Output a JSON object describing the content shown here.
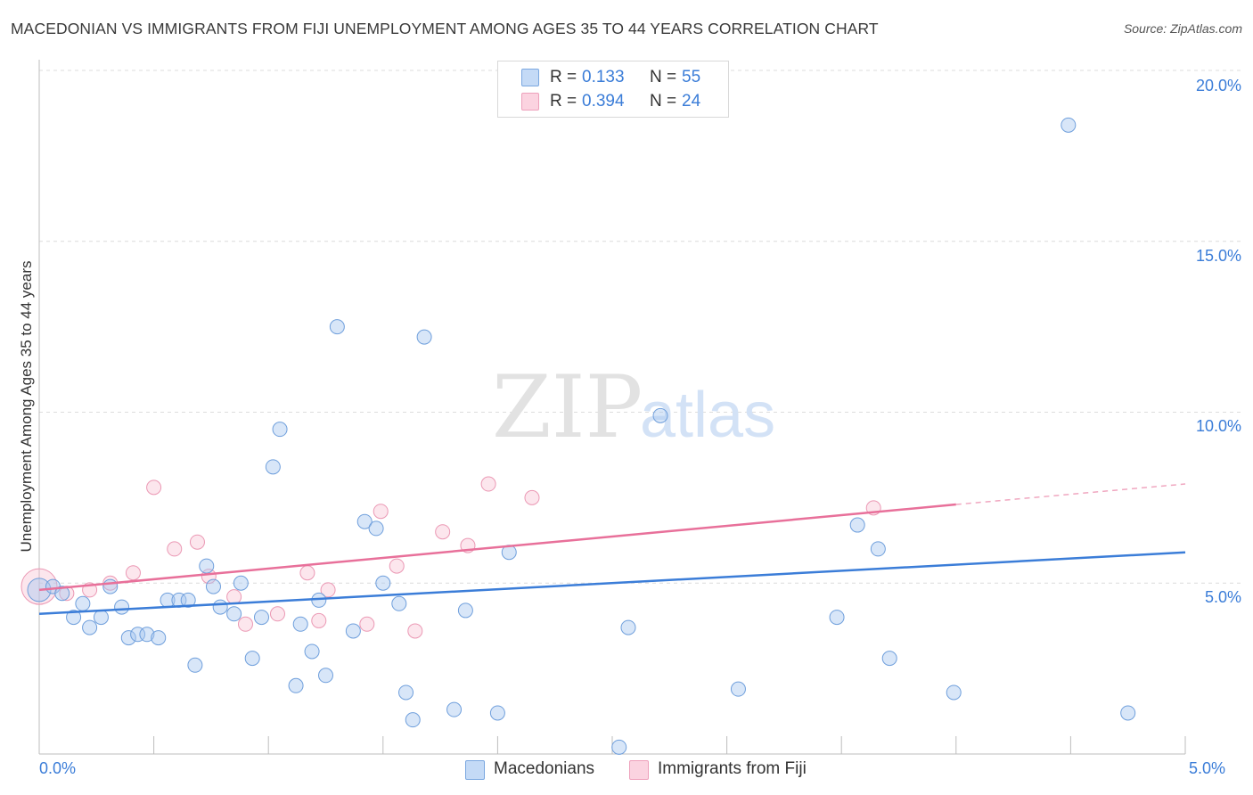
{
  "header": {
    "title": "MACEDONIAN VS IMMIGRANTS FROM FIJI UNEMPLOYMENT AMONG AGES 35 TO 44 YEARS CORRELATION CHART",
    "source": "Source: ZipAtlas.com"
  },
  "legend": {
    "series": [
      {
        "r_label": "R =",
        "r_value": "0.133",
        "n_label": "N =",
        "n_value": "55",
        "color": "#a8c8f0"
      },
      {
        "r_label": "R =",
        "r_value": "0.394",
        "n_label": "N =",
        "n_value": "24",
        "color": "#f7b8cc"
      }
    ]
  },
  "bottom_legend": {
    "items": [
      "Macedonians",
      "Immigrants from Fiji"
    ]
  },
  "watermark": {
    "zip": "ZIP",
    "atlas": "atlas"
  },
  "chart_data": {
    "type": "scatter",
    "title": "MACEDONIAN VS IMMIGRANTS FROM FIJI UNEMPLOYMENT AMONG AGES 35 TO 44 YEARS CORRELATION CHART",
    "xlabel": "",
    "ylabel": "Unemployment Among Ages 35 to 44 years",
    "xlim": [
      0,
      5
    ],
    "ylim": [
      0,
      20
    ],
    "x_ticks": [
      "0.0%",
      "5.0%"
    ],
    "y_ticks": [
      {
        "value": 5,
        "label": "5.0%"
      },
      {
        "value": 10,
        "label": "10.0%"
      },
      {
        "value": 15,
        "label": "15.0%"
      },
      {
        "value": 20,
        "label": "20.0%"
      }
    ],
    "grid": true,
    "colors": {
      "macedonians": "#3b7dd8",
      "fiji": "#e8709a",
      "macedonians_fill": "#a8c8f0",
      "fiji_fill": "#f7b8cc"
    },
    "series": [
      {
        "name": "Macedonians",
        "trend": {
          "x": [
            0.0,
            5.0
          ],
          "y": [
            4.1,
            5.9
          ]
        },
        "points": [
          [
            0.0,
            4.8
          ],
          [
            0.06,
            4.9
          ],
          [
            0.1,
            4.7
          ],
          [
            0.15,
            4.0
          ],
          [
            0.19,
            4.4
          ],
          [
            0.22,
            3.7
          ],
          [
            0.27,
            4.0
          ],
          [
            0.31,
            4.9
          ],
          [
            0.36,
            4.3
          ],
          [
            0.39,
            3.4
          ],
          [
            0.43,
            3.5
          ],
          [
            0.47,
            3.5
          ],
          [
            0.52,
            3.4
          ],
          [
            0.56,
            4.5
          ],
          [
            0.61,
            4.5
          ],
          [
            0.65,
            4.5
          ],
          [
            0.68,
            2.6
          ],
          [
            0.73,
            5.5
          ],
          [
            0.76,
            4.9
          ],
          [
            0.79,
            4.3
          ],
          [
            0.85,
            4.1
          ],
          [
            0.88,
            5.0
          ],
          [
            0.93,
            2.8
          ],
          [
            0.97,
            4.0
          ],
          [
            1.02,
            8.4
          ],
          [
            1.05,
            9.5
          ],
          [
            1.12,
            2.0
          ],
          [
            1.14,
            3.8
          ],
          [
            1.19,
            3.0
          ],
          [
            1.22,
            4.5
          ],
          [
            1.25,
            2.3
          ],
          [
            1.3,
            12.5
          ],
          [
            1.37,
            3.6
          ],
          [
            1.42,
            6.8
          ],
          [
            1.47,
            6.6
          ],
          [
            1.5,
            5.0
          ],
          [
            1.57,
            4.4
          ],
          [
            1.6,
            1.8
          ],
          [
            1.63,
            1.0
          ],
          [
            1.68,
            12.2
          ],
          [
            1.81,
            1.3
          ],
          [
            1.86,
            4.2
          ],
          [
            2.0,
            1.2
          ],
          [
            2.05,
            5.9
          ],
          [
            2.53,
            0.2
          ],
          [
            2.57,
            3.7
          ],
          [
            2.71,
            9.9
          ],
          [
            3.05,
            1.9
          ],
          [
            3.48,
            4.0
          ],
          [
            3.57,
            6.7
          ],
          [
            3.66,
            6.0
          ],
          [
            3.71,
            2.8
          ],
          [
            3.99,
            1.8
          ],
          [
            4.49,
            18.4
          ],
          [
            4.75,
            1.2
          ]
        ]
      },
      {
        "name": "Immigrants from Fiji",
        "trend": {
          "x": [
            0.0,
            4.0
          ],
          "y": [
            4.8,
            7.3
          ]
        },
        "trend_dashed": {
          "x": [
            4.0,
            5.0
          ],
          "y": [
            7.3,
            7.9
          ]
        },
        "points": [
          [
            0.0,
            4.9
          ],
          [
            0.12,
            4.7
          ],
          [
            0.22,
            4.8
          ],
          [
            0.31,
            5.0
          ],
          [
            0.41,
            5.3
          ],
          [
            0.5,
            7.8
          ],
          [
            0.59,
            6.0
          ],
          [
            0.69,
            6.2
          ],
          [
            0.74,
            5.2
          ],
          [
            0.85,
            4.6
          ],
          [
            0.9,
            3.8
          ],
          [
            1.04,
            4.1
          ],
          [
            1.17,
            5.3
          ],
          [
            1.22,
            3.9
          ],
          [
            1.26,
            4.8
          ],
          [
            1.43,
            3.8
          ],
          [
            1.49,
            7.1
          ],
          [
            1.56,
            5.5
          ],
          [
            1.64,
            3.6
          ],
          [
            1.76,
            6.5
          ],
          [
            1.87,
            6.1
          ],
          [
            1.96,
            7.9
          ],
          [
            2.15,
            7.5
          ],
          [
            3.64,
            7.2
          ]
        ]
      }
    ]
  }
}
